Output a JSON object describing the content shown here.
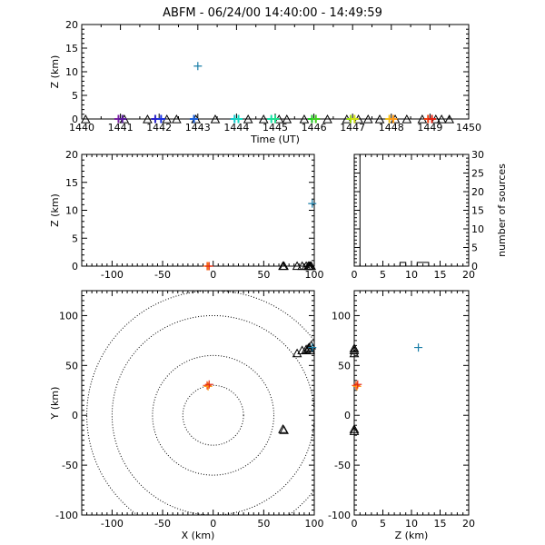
{
  "title": "ABFM - 06/24/00 14:40:00 - 14:49:59",
  "chart_data": [
    {
      "id": "time",
      "type": "scatter",
      "xlabel": "Time (UT)",
      "ylabel": "Z (km)",
      "xlim": [
        1440,
        1450
      ],
      "ylim": [
        0,
        20
      ],
      "xticks": [
        1440,
        1441,
        1442,
        1443,
        1444,
        1445,
        1446,
        1447,
        1448,
        1449,
        1450
      ],
      "yticks": [
        0,
        5,
        10,
        15,
        20
      ],
      "xminor": [
        1440.5,
        1441.5,
        1442.5,
        1443.5,
        1444.5,
        1445.5,
        1446.5,
        1447.5,
        1448.5,
        1449.5
      ],
      "yminor": [
        1,
        2,
        3,
        4,
        6,
        7,
        8,
        9,
        11,
        12,
        13,
        14,
        16,
        17,
        18,
        19
      ],
      "sources": [
        {
          "x": 1440.95,
          "y": 0.0,
          "color": "#7a1fa2"
        },
        {
          "x": 1441.05,
          "y": 0.0,
          "color": "#5a1a9a"
        },
        {
          "x": 1441.9,
          "y": 0.0,
          "color": "#2a20c8"
        },
        {
          "x": 1442.05,
          "y": 0.0,
          "color": "#1c32e0"
        },
        {
          "x": 1442.9,
          "y": 0.0,
          "color": "#1a5ed8"
        },
        {
          "x": 1443.0,
          "y": 11.2,
          "color": "#1a7ea8"
        },
        {
          "x": 1443.95,
          "y": 0.0,
          "color": "#12c8cc"
        },
        {
          "x": 1444.05,
          "y": 0.0,
          "color": "#18d8c0"
        },
        {
          "x": 1444.9,
          "y": 0.0,
          "color": "#18e0a8"
        },
        {
          "x": 1445.0,
          "y": 0.0,
          "color": "#20e090"
        },
        {
          "x": 1445.95,
          "y": 0.0,
          "color": "#20c828"
        },
        {
          "x": 1446.05,
          "y": 0.0,
          "color": "#40d020"
        },
        {
          "x": 1446.95,
          "y": 0.0,
          "color": "#a0e010"
        },
        {
          "x": 1447.05,
          "y": 0.0,
          "color": "#d0e010"
        },
        {
          "x": 1447.95,
          "y": 0.0,
          "color": "#f0c018"
        },
        {
          "x": 1448.05,
          "y": 0.0,
          "color": "#ff9a18"
        },
        {
          "x": 1448.95,
          "y": 0.0,
          "color": "#f04010"
        },
        {
          "x": 1449.05,
          "y": 0.0,
          "color": "#e02010"
        }
      ],
      "triangles": [
        1440.1,
        1441.1,
        1441.7,
        1442.2,
        1442.45,
        1442.95,
        1443.45,
        1444.3,
        1444.7,
        1445.1,
        1445.3,
        1445.75,
        1446.35,
        1446.85,
        1447.15,
        1447.4,
        1447.7,
        1448.1,
        1448.4,
        1448.8,
        1449.15,
        1449.3,
        1449.5
      ],
      "triangle_y": 0.0
    },
    {
      "id": "xz",
      "type": "scatter",
      "xlabel": "",
      "ylabel": "Z (km)",
      "xlim": [
        -130,
        100
      ],
      "ylim": [
        0,
        20
      ],
      "xticks": [
        -100,
        -50,
        0,
        50,
        100
      ],
      "yticks": [
        0,
        5,
        10,
        15,
        20
      ],
      "xminor": [
        -125,
        -120,
        -115,
        -110,
        -105,
        -95,
        -90,
        -85,
        -80,
        -75,
        -70,
        -65,
        -60,
        -55,
        -45,
        -40,
        -35,
        -30,
        -25,
        -20,
        -15,
        -10,
        -5,
        5,
        10,
        15,
        20,
        25,
        30,
        35,
        40,
        45,
        55,
        60,
        65,
        70,
        75,
        80,
        85,
        90,
        95
      ],
      "yminor": [
        1,
        2,
        3,
        4,
        6,
        7,
        8,
        9,
        11,
        12,
        13,
        14,
        16,
        17,
        18,
        19
      ],
      "sources": [
        {
          "x": -6.0,
          "y": 0.0,
          "color": "#f04010"
        },
        {
          "x": -5.0,
          "y": 0.0,
          "color": "#ff9a18"
        },
        {
          "x": -4.0,
          "y": 0.0,
          "color": "#e02010"
        },
        {
          "x": 98.0,
          "y": 11.2,
          "color": "#1a7ea8"
        }
      ],
      "triangles": [
        {
          "x": 69,
          "y": 0
        },
        {
          "x": 70,
          "y": 0
        },
        {
          "x": 83,
          "y": 0
        },
        {
          "x": 88,
          "y": 0
        },
        {
          "x": 92,
          "y": 0
        },
        {
          "x": 94,
          "y": 0
        },
        {
          "x": 95,
          "y": 0
        },
        {
          "x": 96,
          "y": 0
        },
        {
          "x": 97,
          "y": 0
        }
      ]
    },
    {
      "id": "hist",
      "type": "bar",
      "xlabel": "",
      "ylabel": "number of sources",
      "xlim": [
        0,
        20
      ],
      "ylim": [
        0,
        30
      ],
      "xticks": [
        0,
        5,
        10,
        15,
        20
      ],
      "yticks": [
        0,
        5,
        10,
        15,
        20,
        25,
        30
      ],
      "xminor": [
        1,
        2,
        3,
        4,
        6,
        7,
        8,
        9,
        11,
        12,
        13,
        14,
        16,
        17,
        18,
        19
      ],
      "yminor": [
        1,
        2,
        3,
        4,
        6,
        7,
        8,
        9,
        11,
        12,
        13,
        14,
        16,
        17,
        18,
        19,
        21,
        22,
        23,
        24,
        26,
        27,
        28,
        29
      ],
      "bins": [
        {
          "z0": 0,
          "z1": 1,
          "count": 30
        },
        {
          "z0": 1,
          "z1": 2,
          "count": 0
        },
        {
          "z0": 2,
          "z1": 3,
          "count": 0
        },
        {
          "z0": 3,
          "z1": 4,
          "count": 0
        },
        {
          "z0": 4,
          "z1": 5,
          "count": 0
        },
        {
          "z0": 5,
          "z1": 6,
          "count": 0
        },
        {
          "z0": 6,
          "z1": 7,
          "count": 0
        },
        {
          "z0": 7,
          "z1": 8,
          "count": 0
        },
        {
          "z0": 8,
          "z1": 9,
          "count": 1
        },
        {
          "z0": 9,
          "z1": 10,
          "count": 0
        },
        {
          "z0": 10,
          "z1": 11,
          "count": 0
        },
        {
          "z0": 11,
          "z1": 12,
          "count": 1
        },
        {
          "z0": 12,
          "z1": 13,
          "count": 1
        },
        {
          "z0": 13,
          "z1": 14,
          "count": 0
        },
        {
          "z0": 14,
          "z1": 15,
          "count": 0
        },
        {
          "z0": 15,
          "z1": 16,
          "count": 0
        },
        {
          "z0": 16,
          "z1": 17,
          "count": 0
        },
        {
          "z0": 17,
          "z1": 18,
          "count": 0
        },
        {
          "z0": 18,
          "z1": 19,
          "count": 0
        },
        {
          "z0": 19,
          "z1": 20,
          "count": 0
        }
      ]
    },
    {
      "id": "xy",
      "type": "scatter",
      "xlabel": "X (km)",
      "ylabel": "Y (km)",
      "xlim": [
        -130,
        100
      ],
      "ylim": [
        -100,
        125
      ],
      "xticks": [
        -100,
        -50,
        0,
        50,
        100
      ],
      "yticks": [
        -100,
        -50,
        0,
        50,
        100
      ],
      "xminor": [
        -125,
        -120,
        -115,
        -110,
        -105,
        -95,
        -90,
        -85,
        -80,
        -75,
        -70,
        -65,
        -60,
        -55,
        -45,
        -40,
        -35,
        -30,
        -25,
        -20,
        -15,
        -10,
        -5,
        5,
        10,
        15,
        20,
        25,
        30,
        35,
        40,
        45,
        55,
        60,
        65,
        70,
        75,
        80,
        85,
        90,
        95
      ],
      "yminor": [
        -95,
        -90,
        -85,
        -80,
        -75,
        -70,
        -65,
        -60,
        -55,
        -45,
        -40,
        -35,
        -30,
        -25,
        -20,
        -15,
        -10,
        -5,
        5,
        10,
        15,
        20,
        25,
        30,
        35,
        40,
        45,
        55,
        60,
        65,
        70,
        75,
        80,
        85,
        90,
        95,
        105,
        110,
        115,
        120
      ],
      "ring_radii": [
        30,
        60,
        100,
        125
      ],
      "ring_solid": [
        30
      ],
      "sources": [
        {
          "x": -6.0,
          "y": 30.0,
          "color": "#f04010"
        },
        {
          "x": -5.0,
          "y": 29.0,
          "color": "#ff9a18"
        },
        {
          "x": -4.0,
          "y": 31.0,
          "color": "#e02010"
        },
        {
          "x": 98.0,
          "y": 68.0,
          "color": "#1a7ea8"
        }
      ],
      "triangles": [
        {
          "x": 69,
          "y": -14
        },
        {
          "x": 70,
          "y": -15
        },
        {
          "x": 83,
          "y": 62
        },
        {
          "x": 88,
          "y": 65
        },
        {
          "x": 92,
          "y": 66
        },
        {
          "x": 94,
          "y": 67
        },
        {
          "x": 95,
          "y": 68
        },
        {
          "x": 96,
          "y": 65
        },
        {
          "x": 97,
          "y": 70
        }
      ]
    },
    {
      "id": "zy",
      "type": "scatter",
      "xlabel": "Z (km)",
      "ylabel": "",
      "xlim": [
        0,
        20
      ],
      "ylim": [
        -100,
        125
      ],
      "xticks": [
        0,
        5,
        10,
        15,
        20
      ],
      "yticks": [
        -100,
        -50,
        0,
        50,
        100
      ],
      "xminor": [
        1,
        2,
        3,
        4,
        6,
        7,
        8,
        9,
        11,
        12,
        13,
        14,
        16,
        17,
        18,
        19
      ],
      "yminor": [
        -95,
        -90,
        -85,
        -80,
        -75,
        -70,
        -65,
        -60,
        -55,
        -45,
        -40,
        -35,
        -30,
        -25,
        -20,
        -15,
        -10,
        -5,
        5,
        10,
        15,
        20,
        25,
        30,
        35,
        40,
        45,
        55,
        60,
        65,
        70,
        75,
        80,
        85,
        90,
        95,
        105,
        110,
        115,
        120
      ],
      "sources": [
        {
          "x": 0.3,
          "y": 30.0,
          "color": "#f04010"
        },
        {
          "x": 0.5,
          "y": 29.0,
          "color": "#ff9a18"
        },
        {
          "x": 0.6,
          "y": 31.0,
          "color": "#e02010"
        },
        {
          "x": 11.2,
          "y": 68.0,
          "color": "#1a7ea8"
        }
      ],
      "triangles": [
        {
          "x": 0.0,
          "y": -14
        },
        {
          "x": 0.0,
          "y": -16
        },
        {
          "x": 0.0,
          "y": 62
        },
        {
          "x": 0.0,
          "y": 65
        },
        {
          "x": 0.0,
          "y": 67
        }
      ]
    }
  ]
}
